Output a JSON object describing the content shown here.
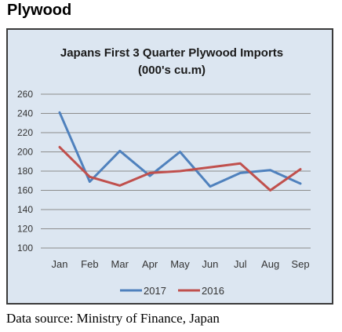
{
  "page": {
    "heading": "Plywood",
    "source": "Data source: Ministry of Finance, Japan"
  },
  "chart_data": {
    "type": "line",
    "title": "Japans First 3 Quarter Plywood Imports",
    "subtitle": "(000's cu.m)",
    "xlabel": "",
    "ylabel": "",
    "categories": [
      "Jan",
      "Feb",
      "Mar",
      "Apr",
      "May",
      "Jun",
      "Jul",
      "Aug",
      "Sep"
    ],
    "y_ticks": [
      100,
      120,
      140,
      160,
      180,
      200,
      220,
      240,
      260
    ],
    "ylim": [
      100,
      260
    ],
    "grid": true,
    "legend_position": "bottom",
    "series": [
      {
        "name": "2017",
        "color": "#4f81bd",
        "values": [
          241,
          169,
          201,
          175,
          200,
          164,
          178,
          181,
          167
        ]
      },
      {
        "name": "2016",
        "color": "#c0504d",
        "values": [
          205,
          174,
          165,
          178,
          180,
          184,
          188,
          160,
          182
        ]
      }
    ]
  }
}
